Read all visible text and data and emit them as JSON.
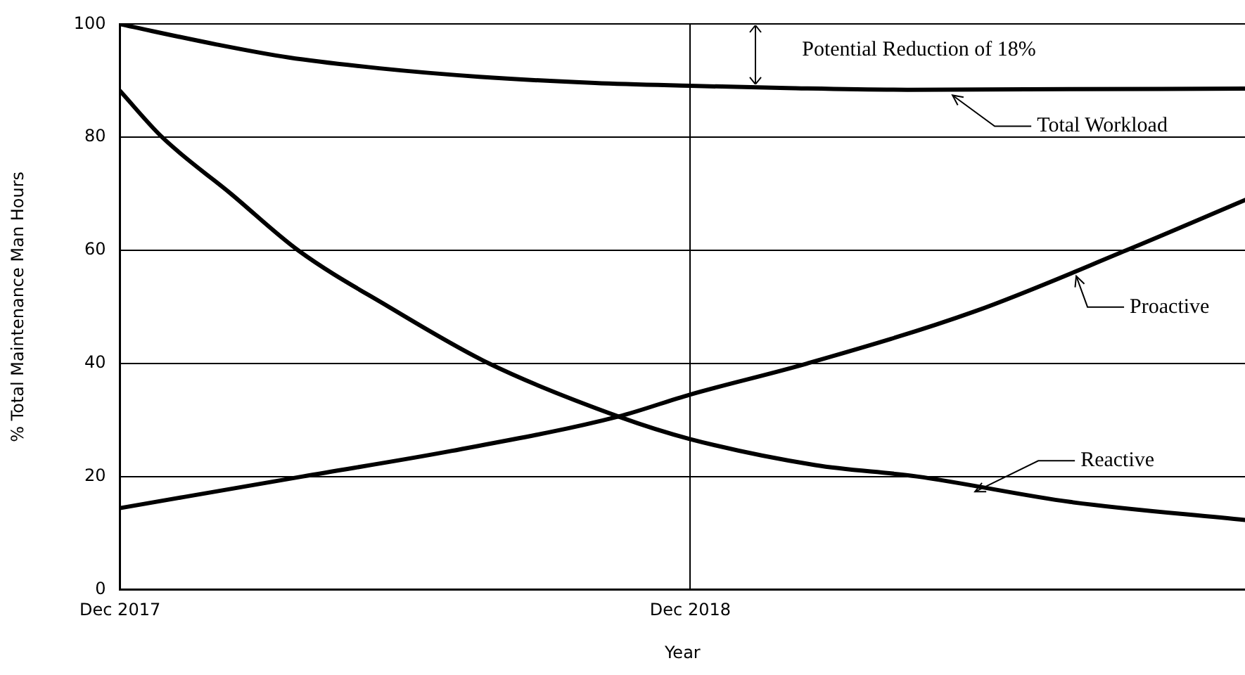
{
  "chart_data": {
    "type": "line",
    "xlabel": "Year",
    "ylabel": "% Total Maintenance Man Hours",
    "xlim": [
      "2017-12-01",
      "2019-11-21"
    ],
    "xticks": [
      {
        "value": "2017-12",
        "label": "Dec 2017"
      },
      {
        "value": "2018-12",
        "label": "Dec 2018"
      }
    ],
    "ylim": [
      0,
      100
    ],
    "yticks": [
      0,
      20,
      40,
      60,
      80,
      100
    ],
    "grid": true,
    "legend": false,
    "series": [
      {
        "name": "Total Workload",
        "color": "#000000",
        "x": [
          "2017-12-01",
          "2018-02-01",
          "2018-03-19",
          "2018-05-16",
          "2018-07-19",
          "2018-10-01",
          "2018-12-01",
          "2019-02-01",
          "2019-04-19",
          "2019-08-01",
          "2019-11-21"
        ],
        "values": [
          100,
          96.4,
          94.1,
          92.2,
          90.7,
          89.6,
          89.1,
          88.7,
          88.4,
          88.5,
          88.6
        ]
      },
      {
        "name": "Proactive",
        "color": "#000000",
        "x": [
          "2017-12-01",
          "2018-03-28",
          "2018-07-01",
          "2018-10-16",
          "2018-12-01",
          "2019-02-14",
          "2019-06-01",
          "2019-09-06",
          "2019-11-21"
        ],
        "values": [
          14.4,
          20,
          24.5,
          30.6,
          34.5,
          40,
          49.2,
          60,
          68.9
        ]
      },
      {
        "name": "Reactive",
        "color": "#000000",
        "x": [
          "2017-12-01",
          "2017-12-28",
          "2018-02-10",
          "2018-03-25",
          "2018-05-22",
          "2018-07-25",
          "2018-10-16",
          "2018-12-01",
          "2019-02-19",
          "2019-04-25",
          "2019-08-01",
          "2019-11-21"
        ],
        "values": [
          88.2,
          80,
          70,
          60,
          50,
          40,
          30.6,
          26.6,
          22,
          20,
          15.5,
          12.3
        ]
      }
    ],
    "annotations": [
      "Potential Reduction of 18%"
    ]
  }
}
